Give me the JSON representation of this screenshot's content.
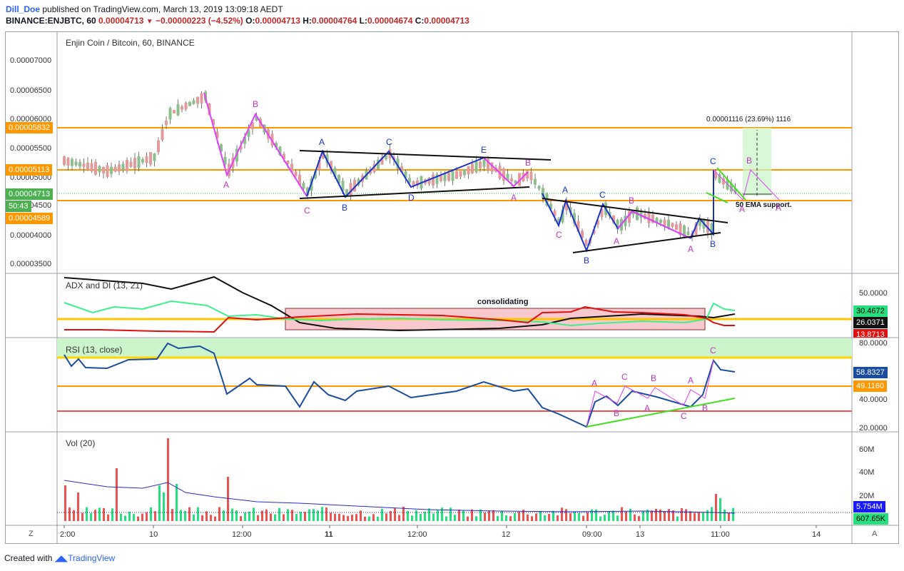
{
  "header": {
    "user": "Dill_Doe",
    "published": " published on TradingView.com, March 13, 2019 13:09:18 AEDT",
    "symbol": "BINANCE:ENJBTC, 60",
    "price": "0.00004713",
    "change": "−0.00000223 (−4.52%)",
    "o_label": "O:",
    "o": "0.00004713",
    "h_label": "H:",
    "h": "0.00004764",
    "l_label": "L:",
    "l": "0.00004674",
    "c_label": "C:",
    "c": "0.00004713"
  },
  "main_pane": {
    "title": "Enjin Coin / Bitcoin, 60, BINANCE",
    "y_ticks": [
      "0.00007000",
      "0.00006500",
      "0.00006000",
      "0.00005500",
      "0.00005000",
      "0.00004500",
      "0.00004000",
      "0.00003500"
    ],
    "tags": {
      "level1": "0.00005832",
      "level2": "0.00005113",
      "current": "0.00004713",
      "countdown": "50:43",
      "level3": "0.00004589"
    },
    "measure_label": "0.00001116 (23.69%) 1116",
    "ema_note": "50 EMA support.",
    "pattern_labels": [
      "A",
      "B",
      "C",
      "A",
      "B",
      "C",
      "D",
      "E",
      "A",
      "B",
      "A",
      "B",
      "C",
      "A",
      "B",
      "C",
      "A",
      "B",
      "C",
      "A",
      "B",
      "A"
    ]
  },
  "adx_pane": {
    "title": "ADX and DI (13, 21)",
    "y_ticks": [
      "50.0000"
    ],
    "note": "consolidating",
    "tags": {
      "plus_di": "30.4672",
      "adx": "26.0371",
      "minus_di": "13.8713"
    }
  },
  "rsi_pane": {
    "title": "RSI (13, close)",
    "y_ticks": [
      "80.0000",
      "40.0000",
      "20.0000"
    ],
    "tags": {
      "rsi": "58.8327",
      "level": "49.1160"
    },
    "pattern_labels": [
      "A",
      "B",
      "C",
      "A",
      "B",
      "C",
      "A",
      "B",
      "C"
    ]
  },
  "vol_pane": {
    "title": "Vol (20)",
    "y_ticks": [
      "60M",
      "40M",
      "20M"
    ],
    "tags": {
      "ma": "5.754M",
      "vol": "607.65K"
    }
  },
  "x_axis": {
    "ticks": [
      "2:00",
      "10",
      "12:00",
      "11",
      "12:00",
      "12",
      "09:00",
      "13",
      "11:00",
      "14"
    ],
    "left_button": "Z",
    "right_button": "A"
  },
  "footer": {
    "created": "Created with ",
    "brand": "TradingView"
  },
  "colors": {
    "orange": "#ff9800",
    "green": "#26e07f",
    "red": "#ef5350",
    "blue": "#1a237e",
    "magenta": "#e040fb",
    "yellow": "#ffd600"
  }
}
